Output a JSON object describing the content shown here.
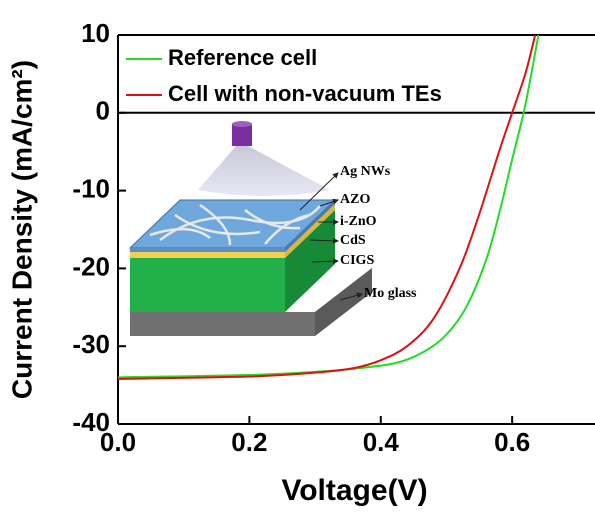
{
  "chart_data": {
    "type": "line",
    "x_label": "Voltage(V)",
    "y_label": "Current Density (mA/cm²)",
    "xlim": [
      0,
      0.72
    ],
    "ylim": [
      -40,
      10
    ],
    "xticks": [
      {
        "value": 0,
        "label": "0.0"
      },
      0.2,
      0.4,
      0.6
    ],
    "yticks": [
      -40,
      -30,
      -20,
      -10,
      0,
      10
    ],
    "legend": "upper left",
    "series": [
      {
        "name": "Reference cell",
        "color": "#22dd22",
        "x": [
          0,
          0.2,
          0.3,
          0.38,
          0.43,
          0.47,
          0.5,
          0.53,
          0.56,
          0.58,
          0.6,
          0.62,
          0.64
        ],
        "values": [
          -34,
          -33.7,
          -33.3,
          -32.7,
          -32,
          -30.5,
          -28.5,
          -25,
          -19,
          -13,
          -6,
          1,
          10
        ]
      },
      {
        "name": "Cell with non-vacuum TEs",
        "color": "#dd1111",
        "x": [
          0,
          0.2,
          0.3,
          0.36,
          0.4,
          0.44,
          0.48,
          0.52,
          0.55,
          0.58,
          0.6,
          0.62,
          0.635
        ],
        "values": [
          -34.2,
          -33.9,
          -33.4,
          -32.8,
          -31.8,
          -30,
          -26.5,
          -20,
          -13,
          -5,
          0,
          5,
          10
        ]
      }
    ]
  },
  "inset": {
    "labels": [
      "Ag NWs",
      "AZO",
      "i-ZnO",
      "CdS",
      "CIGS",
      "Mo glass"
    ]
  }
}
